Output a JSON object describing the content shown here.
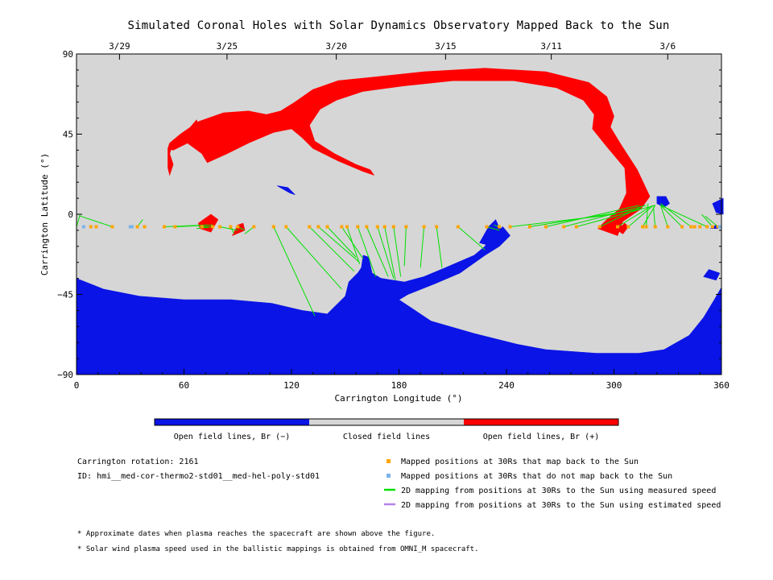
{
  "chart_data": {
    "type": "map",
    "title": "Simulated Coronal Holes with Solar Dynamics Observatory Mapped Back to the Sun",
    "xlabel": "Carrington Longitude (°)",
    "ylabel": "Carrington Latitude (°)",
    "xlim": [
      0,
      360
    ],
    "ylim": [
      -90,
      90
    ],
    "x_ticks": [
      {
        "value": 0,
        "label": "0"
      },
      {
        "value": 60,
        "label": "60"
      },
      {
        "value": 120,
        "label": "120"
      },
      {
        "value": 180,
        "label": "180"
      },
      {
        "value": 240,
        "label": "240"
      },
      {
        "value": 300,
        "label": "300"
      },
      {
        "value": 360,
        "label": "360"
      }
    ],
    "y_ticks": [
      {
        "value": 90,
        "label": "90"
      },
      {
        "value": 45,
        "label": "45"
      },
      {
        "value": 0,
        "label": "0"
      },
      {
        "value": -45,
        "label": "−45"
      },
      {
        "value": -90,
        "label": "−90"
      }
    ],
    "date_ticks": [
      {
        "longitude": 24,
        "label": "3/29"
      },
      {
        "longitude": 84,
        "label": "3/25"
      },
      {
        "longitude": 145,
        "label": "3/20"
      },
      {
        "longitude": 206,
        "label": "3/15"
      },
      {
        "longitude": 265,
        "label": "3/11"
      },
      {
        "longitude": 330,
        "label": "3/6"
      }
    ],
    "colors": {
      "open_negative": "#0a14e6",
      "closed": "#d6d6d6",
      "open_positive": "#ff0000",
      "mapped_back": "#ffa500",
      "not_mapped_back": "#7ab4ea",
      "measured_speed_line": "#00e000",
      "estimated_speed_line": "#b482e6"
    },
    "colorbar": {
      "labels": [
        "Open field lines, Br (−)",
        "Closed field lines",
        "Open field lines, Br (+)"
      ]
    },
    "spacecraft_latitude": -7,
    "mapped_positions_lon": [
      8,
      11,
      20,
      34,
      38,
      49,
      55,
      70,
      76,
      80,
      86,
      90,
      99,
      110,
      117,
      130,
      135,
      140,
      148,
      151,
      157,
      162,
      168,
      172,
      177,
      184,
      194,
      201,
      213,
      229,
      236,
      242,
      253,
      262,
      272,
      279,
      292,
      302,
      308,
      316,
      318,
      323,
      330,
      338,
      343,
      345,
      348,
      352,
      355,
      358
    ],
    "unmapped_positions_lon": [
      4,
      30,
      31,
      359
    ],
    "footpoints": [
      [
        0,
        -7,
        2,
        0
      ],
      [
        20,
        -7,
        2,
        -1
      ],
      [
        34,
        -7,
        37,
        -3
      ],
      [
        49,
        -7,
        73,
        -6
      ],
      [
        55,
        -7,
        76,
        -6
      ],
      [
        70,
        -7,
        74,
        -7
      ],
      [
        76,
        -7,
        67,
        -8
      ],
      [
        80,
        -7,
        90,
        -9
      ],
      [
        86,
        -7,
        88,
        -11
      ],
      [
        90,
        -7,
        94,
        -9
      ],
      [
        99,
        -7,
        94,
        -11
      ],
      [
        110,
        -7,
        133,
        -57
      ],
      [
        117,
        -7,
        148,
        -42
      ],
      [
        130,
        -7,
        155,
        -32
      ],
      [
        135,
        -7,
        158,
        -27
      ],
      [
        140,
        -7,
        156,
        -24
      ],
      [
        148,
        -7,
        160,
        -25
      ],
      [
        151,
        -7,
        158,
        -28
      ],
      [
        157,
        -7,
        167,
        -35
      ],
      [
        162,
        -7,
        174,
        -35
      ],
      [
        168,
        -7,
        177,
        -36
      ],
      [
        172,
        -7,
        178,
        -37
      ],
      [
        177,
        -7,
        181,
        -35
      ],
      [
        184,
        -7,
        183,
        -29
      ],
      [
        194,
        -7,
        192,
        -30
      ],
      [
        201,
        -7,
        204,
        -30
      ],
      [
        213,
        -7,
        228,
        -20
      ],
      [
        229,
        -7,
        236,
        -9
      ],
      [
        236,
        -7,
        233,
        -6
      ],
      [
        242,
        -7,
        301,
        0
      ],
      [
        253,
        -7,
        315,
        3
      ],
      [
        262,
        -7,
        314,
        5
      ],
      [
        272,
        -7,
        318,
        5
      ],
      [
        279,
        -7,
        323,
        5
      ],
      [
        292,
        -7,
        315,
        4
      ],
      [
        302,
        -7,
        320,
        4
      ],
      [
        308,
        -7,
        322,
        5
      ],
      [
        316,
        -7,
        323,
        5
      ],
      [
        318,
        -7,
        319,
        6
      ],
      [
        323,
        -7,
        322,
        4
      ],
      [
        330,
        -7,
        326,
        5
      ],
      [
        338,
        -7,
        326,
        5
      ],
      [
        343,
        -7,
        326,
        6
      ],
      [
        352,
        -7,
        326,
        5
      ],
      [
        355,
        -7,
        349,
        0
      ],
      [
        358,
        -7,
        351,
        -1
      ]
    ],
    "regions": {
      "red": [
        [
          [
            51,
            37
          ],
          [
            52,
            40
          ],
          [
            58,
            45
          ],
          [
            68,
            52
          ],
          [
            82,
            57
          ],
          [
            96,
            58
          ],
          [
            106,
            56
          ],
          [
            114,
            58
          ],
          [
            122,
            63
          ],
          [
            132,
            70
          ],
          [
            146,
            75
          ],
          [
            166,
            77
          ],
          [
            194,
            80
          ],
          [
            228,
            82
          ],
          [
            262,
            80
          ],
          [
            286,
            74
          ],
          [
            296,
            66
          ],
          [
            300,
            55
          ],
          [
            298,
            49
          ],
          [
            304,
            39
          ],
          [
            313,
            25
          ],
          [
            320,
            10
          ],
          [
            315,
            3
          ],
          [
            305,
            -4
          ],
          [
            302,
            -12
          ],
          [
            291,
            -8
          ],
          [
            296,
            -3
          ],
          [
            303,
            3
          ],
          [
            307,
            12
          ],
          [
            306,
            26
          ],
          [
            296,
            38
          ],
          [
            288,
            48
          ],
          [
            289,
            56
          ],
          [
            283,
            64
          ],
          [
            268,
            71
          ],
          [
            244,
            75
          ],
          [
            210,
            75
          ],
          [
            182,
            72
          ],
          [
            160,
            69
          ],
          [
            145,
            64
          ],
          [
            136,
            59
          ],
          [
            130,
            50
          ],
          [
            133,
            41
          ],
          [
            144,
            34
          ],
          [
            156,
            28
          ],
          [
            164,
            25
          ],
          [
            166,
            22
          ],
          [
            160,
            24
          ],
          [
            146,
            30
          ],
          [
            132,
            37
          ],
          [
            126,
            43
          ],
          [
            120,
            48
          ],
          [
            110,
            46
          ],
          [
            96,
            40
          ],
          [
            84,
            34
          ],
          [
            73,
            29
          ],
          [
            70,
            34
          ],
          [
            62,
            40
          ],
          [
            54,
            36
          ]
        ],
        [
          [
            51,
            37
          ],
          [
            56,
            40
          ],
          [
            62,
            40
          ],
          [
            68,
            40
          ],
          [
            69,
            48
          ],
          [
            67,
            53
          ],
          [
            62,
            47
          ],
          [
            58,
            44
          ],
          [
            54,
            40
          ],
          [
            52,
            34
          ],
          [
            54,
            28
          ],
          [
            52,
            22
          ],
          [
            51,
            26
          ],
          [
            51,
            32
          ]
        ],
        [
          [
            112,
            55
          ],
          [
            122,
            63
          ],
          [
            132,
            70
          ],
          [
            135,
            68
          ],
          [
            128,
            62
          ],
          [
            118,
            56
          ]
        ],
        [
          [
            68,
            -5
          ],
          [
            75,
            0
          ],
          [
            79,
            -3
          ],
          [
            75,
            -10
          ],
          [
            69,
            -8
          ]
        ],
        [
          [
            87,
            -12
          ],
          [
            94,
            -9
          ],
          [
            93,
            -5
          ],
          [
            90,
            -6
          ],
          [
            88,
            -10
          ]
        ],
        [
          [
            302,
            -9
          ],
          [
            306,
            -5
          ],
          [
            308,
            -7
          ],
          [
            305,
            -11
          ]
        ]
      ],
      "blue": [
        [
          [
            0,
            -36
          ],
          [
            15,
            -42
          ],
          [
            35,
            -46
          ],
          [
            60,
            -48
          ],
          [
            86,
            -48
          ],
          [
            109,
            -50
          ],
          [
            126,
            -54
          ],
          [
            140,
            -56
          ],
          [
            150,
            -46
          ],
          [
            152,
            -38
          ],
          [
            157,
            -33
          ],
          [
            159,
            -30
          ],
          [
            160,
            -23
          ],
          [
            163,
            -24
          ],
          [
            165,
            -33
          ],
          [
            170,
            -36
          ],
          [
            183,
            -38
          ],
          [
            194,
            -35
          ],
          [
            206,
            -30
          ],
          [
            222,
            -23
          ],
          [
            228,
            -18
          ],
          [
            232,
            -12
          ],
          [
            238,
            -7
          ],
          [
            242,
            -12
          ],
          [
            236,
            -18
          ],
          [
            228,
            -23
          ],
          [
            214,
            -33
          ],
          [
            200,
            -39
          ],
          [
            185,
            -45
          ],
          [
            180,
            -48
          ],
          [
            198,
            -60
          ],
          [
            222,
            -67
          ],
          [
            246,
            -73
          ],
          [
            262,
            -76
          ],
          [
            290,
            -78
          ],
          [
            314,
            -78
          ],
          [
            328,
            -76
          ],
          [
            342,
            -68
          ],
          [
            350,
            -58
          ],
          [
            356,
            -48
          ],
          [
            360,
            -41
          ],
          [
            360,
            -90
          ],
          [
            0,
            -90
          ]
        ],
        [
          [
            225,
            -16
          ],
          [
            230,
            -7
          ],
          [
            234,
            -3
          ],
          [
            238,
            -12
          ],
          [
            232,
            -18
          ]
        ],
        [
          [
            324,
            10
          ],
          [
            329,
            10
          ],
          [
            331,
            6
          ],
          [
            328,
            4
          ],
          [
            324,
            6
          ]
        ],
        [
          [
            355,
            6
          ],
          [
            361,
            9
          ],
          [
            361,
            0
          ],
          [
            357,
            1
          ]
        ],
        [
          [
            350,
            -35
          ],
          [
            357,
            -37
          ],
          [
            359,
            -33
          ],
          [
            353,
            -31
          ]
        ],
        [
          [
            354,
            -8
          ],
          [
            358,
            -8
          ],
          [
            357,
            -6
          ]
        ],
        [
          [
            112,
            16
          ],
          [
            119,
            12
          ],
          [
            122,
            11
          ],
          [
            118,
            15
          ]
        ]
      ]
    }
  },
  "meta": {
    "carrington_rotation": "Carrington rotation: 2161",
    "model_id": "ID: hmi__med-cor-thermo2-std01__med-hel-poly-std01"
  },
  "legend": [
    {
      "text": "Mapped positions at 30Rs that map back to the Sun",
      "marker": "square",
      "color": "#ffa500"
    },
    {
      "text": "Mapped positions at 30Rs that do not map back to the Sun",
      "marker": "square",
      "color": "#7ab4ea"
    },
    {
      "text": "2D mapping from positions at 30Rs to the Sun using measured speed",
      "marker": "line",
      "color": "#00e000"
    },
    {
      "text": "2D mapping from positions at 30Rs to the Sun using estimated speed",
      "marker": "line",
      "color": "#b482e6"
    }
  ],
  "footnotes": [
    "* Approximate dates when plasma reaches the spacecraft are shown above the figure.",
    "* Solar wind plasma speed used in the ballistic mappings is obtained from OMNI_M spacecraft."
  ]
}
